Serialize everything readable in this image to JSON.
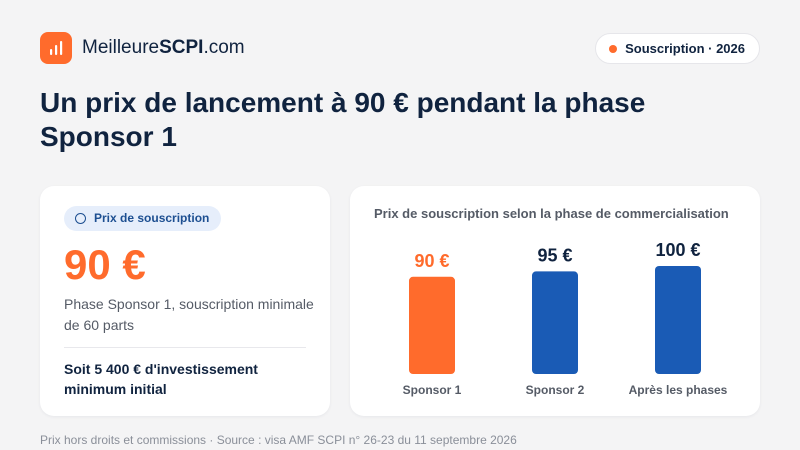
{
  "brand": {
    "prefix": "Meilleure",
    "bold": "SCPI",
    "suffix": ".com",
    "logo_icon": "bar-chart-icon"
  },
  "tag": {
    "label": "Souscription · 2026",
    "dot_color": "#ff6b2c"
  },
  "headline": "Un prix de lancement à 90 € pendant la phase Sponsor 1",
  "price_card": {
    "badge_label": "Prix de souscription",
    "badge_icon": "coin-icon",
    "price": "90 €",
    "description": "Phase Sponsor 1, souscription minimale de 60 parts",
    "investment_note": "Soit 5 400 € d'investissement minimum initial"
  },
  "chart_card": {
    "title": "Prix de souscription selon la phase de commercialisation"
  },
  "chart_data": {
    "type": "bar",
    "categories": [
      "Sponsor 1",
      "Sponsor 2",
      "Après les phases"
    ],
    "values": [
      90,
      95,
      100
    ],
    "value_labels": [
      "90 €",
      "95 €",
      "100 €"
    ],
    "colors": [
      "#ff6b2c",
      "#1a5bb5",
      "#1a5bb5"
    ],
    "label_colors": [
      "#ff6b2c",
      "#10233f",
      "#10233f"
    ],
    "title": "Prix de souscription selon la phase de commercialisation",
    "xlabel": "",
    "ylabel": "",
    "grid": false,
    "legend": "none"
  },
  "footnote": "Prix hors droits et commissions · Source : visa AMF SCPI n° 26-23 du 11 septembre 2026",
  "colors": {
    "accent": "#ff6b2c",
    "primary_blue": "#1a5bb5",
    "navy": "#10233f"
  }
}
